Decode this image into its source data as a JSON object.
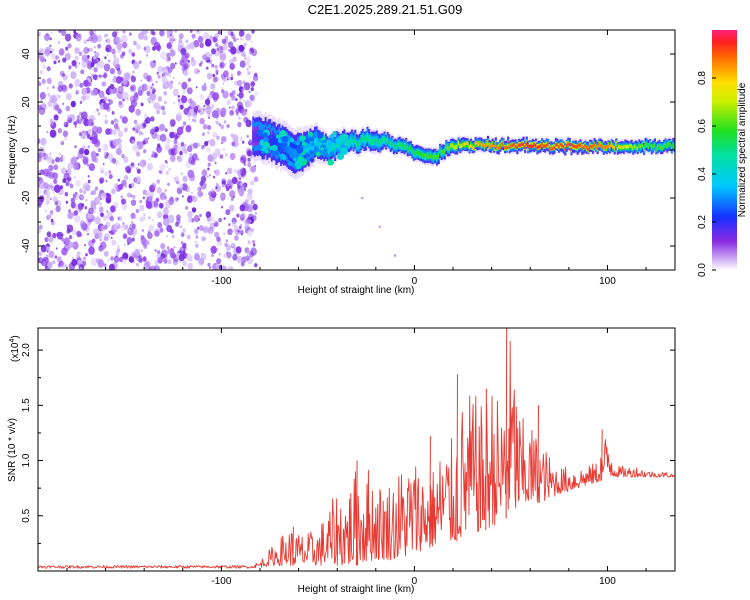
{
  "title": "C2E1.2025.289.21.51.G09",
  "colors": {
    "line": "#e83a32",
    "scatter_purple": "#7a2be0",
    "band_low": "#2040ff",
    "band_mid": "#20e0a0",
    "band_high": "#ff3030"
  },
  "chart_data": [
    {
      "type": "heatmap",
      "title": "",
      "xlabel": "Height of straight line (km)",
      "ylabel": "Frequency (Hz)",
      "xlim": [
        -195,
        135
      ],
      "ylim": [
        -50,
        50
      ],
      "x_ticks": [
        -100,
        0,
        100
      ],
      "x_tick_labels": [
        "-100",
        "0",
        "100"
      ],
      "y_ticks": [
        -40,
        -20,
        0,
        20,
        40
      ],
      "y_tick_labels": [
        "-40",
        "-20",
        "0",
        "20",
        "40"
      ],
      "noise_region_x": [
        -195,
        -85
      ],
      "ridge": {
        "x": [
          -84,
          -75,
          -70,
          -65,
          -60,
          -55,
          -50,
          -45,
          -40,
          -35,
          -30,
          -25,
          -20,
          -15,
          -10,
          -5,
          0,
          5,
          10,
          15,
          20,
          30,
          40,
          50,
          60,
          70,
          80,
          90,
          100,
          110,
          120,
          135
        ],
        "freq": [
          6,
          4,
          2,
          0,
          -2,
          1,
          3,
          0,
          2,
          4,
          3,
          5,
          3,
          4,
          2,
          1,
          -1,
          -2,
          -3,
          0,
          2,
          2,
          2,
          2,
          2,
          1.5,
          1.5,
          1.5,
          1.5,
          1.5,
          1.5,
          1.5
        ],
        "spread_hz": [
          8,
          8,
          8,
          8,
          8,
          7,
          6,
          5,
          5,
          4,
          4,
          4,
          4,
          3,
          3,
          3,
          3,
          3,
          3,
          3,
          3,
          2.5,
          2.5,
          2.5,
          2.5,
          2.5,
          2.5,
          2.5,
          2.5,
          2.5,
          2.5,
          2.5
        ],
        "amplitude": [
          0.15,
          0.2,
          0.25,
          0.3,
          0.3,
          0.35,
          0.4,
          0.4,
          0.45,
          0.45,
          0.5,
          0.5,
          0.5,
          0.5,
          0.5,
          0.55,
          0.55,
          0.6,
          0.6,
          0.6,
          0.7,
          0.8,
          0.85,
          0.9,
          0.95,
          0.9,
          0.92,
          0.9,
          0.85,
          0.7,
          0.6,
          0.6
        ]
      },
      "colorbar": {
        "label": "Normalized spectral amplitude",
        "range": [
          0,
          1
        ],
        "ticks": [
          0.0,
          0.2,
          0.4,
          0.6,
          0.8
        ],
        "tick_labels": [
          "0.0",
          "0.2",
          "0.4",
          "0.6",
          "0.8"
        ]
      }
    },
    {
      "type": "line",
      "title": "",
      "xlabel": "Height of straight line (km)",
      "ylabel": "SNR (10 * v/v)",
      "y_scale_label": "(x10",
      "y_scale_exp": "4",
      "y_scale_close": ")",
      "xlim": [
        -195,
        135
      ],
      "ylim": [
        0,
        2.2
      ],
      "x_ticks": [
        -100,
        0,
        100
      ],
      "x_tick_labels": [
        "-100",
        "0",
        "100"
      ],
      "y_ticks": [
        0.5,
        1.0,
        1.5,
        2.0
      ],
      "y_tick_labels": [
        "0.5",
        "1.0",
        "1.5",
        "2.0"
      ],
      "series": [
        {
          "name": "SNR",
          "envelope_x": [
            -195,
            -85,
            -80,
            -75,
            -70,
            -65,
            -60,
            -55,
            -50,
            -45,
            -40,
            -35,
            -30,
            -25,
            -20,
            -15,
            -10,
            -5,
            0,
            5,
            10,
            15,
            20,
            25,
            30,
            35,
            40,
            45,
            50,
            55,
            60,
            65,
            70,
            75,
            80,
            85,
            90,
            95,
            100,
            105,
            110,
            115,
            120,
            125,
            130,
            135
          ],
          "envelope_y": [
            0.04,
            0.04,
            0.1,
            0.2,
            0.3,
            0.4,
            0.35,
            0.35,
            0.4,
            0.55,
            0.75,
            0.75,
            0.95,
            1.0,
            0.85,
            0.8,
            0.9,
            1.0,
            1.05,
            0.95,
            0.95,
            1.2,
            1.2,
            1.55,
            1.65,
            1.5,
            1.75,
            1.5,
            2.2,
            1.4,
            1.35,
            1.2,
            1.05,
            0.95,
            0.95,
            0.95,
            0.95,
            1.0,
            1.3,
            0.95,
            0.95,
            0.95,
            0.92,
            0.9,
            0.9,
            0.88
          ],
          "baseline_y": [
            0.03,
            0.03,
            0.03,
            0.05,
            0.05,
            0.05,
            0.05,
            0.05,
            0.05,
            0.05,
            0.05,
            0.05,
            0.05,
            0.08,
            0.1,
            0.1,
            0.1,
            0.12,
            0.15,
            0.2,
            0.22,
            0.25,
            0.25,
            0.3,
            0.35,
            0.35,
            0.4,
            0.45,
            0.5,
            0.55,
            0.6,
            0.62,
            0.65,
            0.7,
            0.72,
            0.75,
            0.78,
            0.8,
            0.85,
            0.85,
            0.85,
            0.85,
            0.85,
            0.85,
            0.85,
            0.85
          ],
          "peaks": [
            {
              "x": 47.5,
              "y": 2.2
            },
            {
              "x": 37,
              "y": 1.65
            },
            {
              "x": 22,
              "y": 1.78
            },
            {
              "x": 64,
              "y": 1.5
            },
            {
              "x": 97,
              "y": 1.28
            },
            {
              "x": 8,
              "y": 1.22
            },
            {
              "x": -30,
              "y": 1.0
            },
            {
              "x": -63,
              "y": 0.4
            }
          ]
        }
      ]
    }
  ]
}
